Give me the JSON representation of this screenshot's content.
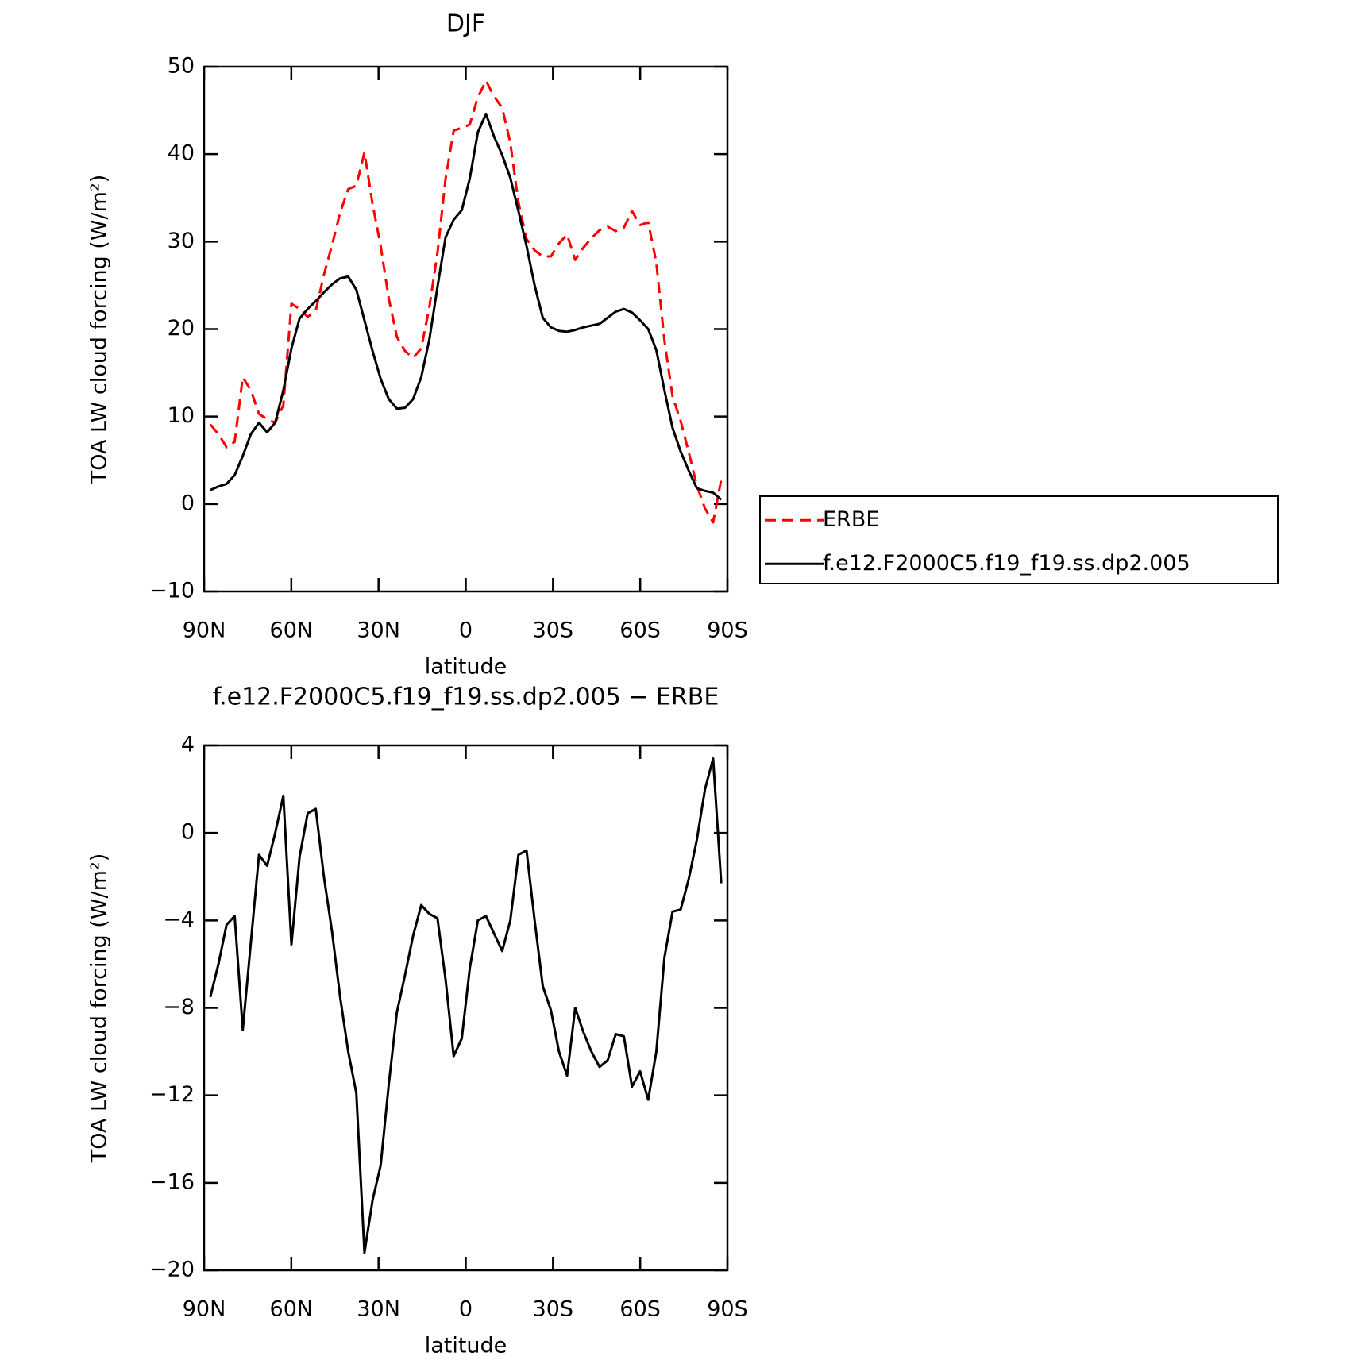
{
  "chart_data": [
    {
      "type": "line",
      "title": "DJF",
      "xlabel": "latitude",
      "ylabel": "TOA LW cloud forcing (W/m²)",
      "x": [
        87.86,
        85.07,
        82.28,
        79.49,
        76.7,
        73.91,
        71.12,
        68.33,
        65.54,
        62.75,
        59.96,
        57.17,
        54.38,
        51.59,
        48.8,
        46.01,
        43.22,
        40.43,
        37.64,
        34.85,
        32.06,
        29.27,
        26.48,
        23.69,
        20.9,
        18.11,
        15.32,
        12.53,
        9.74,
        6.95,
        4.16,
        1.37,
        -1.37,
        -4.16,
        -6.95,
        -9.74,
        -12.53,
        -15.32,
        -18.11,
        -20.9,
        -23.69,
        -26.48,
        -29.27,
        -32.06,
        -34.85,
        -37.64,
        -40.43,
        -43.22,
        -46.01,
        -48.8,
        -51.59,
        -54.38,
        -57.17,
        -59.96,
        -62.75,
        -65.54,
        -68.33,
        -71.12,
        -73.91,
        -76.7,
        -79.49,
        -82.28,
        -85.07,
        -87.86
      ],
      "series": [
        {
          "name": "ERBE",
          "color": "#ff0000",
          "style": "dashed",
          "values": [
            9.1,
            8,
            6.5,
            7.1,
            14.5,
            13,
            10.3,
            9.7,
            9.3,
            11.3,
            22.9,
            22.3,
            21.4,
            22.1,
            26.2,
            29.6,
            33.3,
            36,
            36.4,
            40.2,
            34.3,
            29.5,
            23.5,
            19.1,
            17.5,
            16.7,
            17.8,
            22.5,
            28.7,
            37.2,
            42.7,
            43,
            43.4,
            46.5,
            48.4,
            46.6,
            45.3,
            41.3,
            34.5,
            30.3,
            29,
            28.3,
            28.3,
            29.8,
            30.8,
            27.9,
            29.3,
            30.4,
            31.3,
            31.7,
            31.2,
            31.6,
            33.5,
            31.9,
            32.2,
            27.6,
            18.7,
            12.3,
            9.5,
            5.9,
            2.1,
            -0.5,
            -2.1,
            2.8
          ]
        },
        {
          "name": "f.e12.F2000C5.f19_f19.ss.dp2.005",
          "color": "#000000",
          "style": "solid",
          "values": [
            1.6,
            2,
            2.3,
            3.3,
            5.5,
            8,
            9.3,
            8.2,
            9.3,
            13,
            17.8,
            21.2,
            22.3,
            23.2,
            24.2,
            25.1,
            25.8,
            26,
            24.5,
            21,
            17.5,
            14.3,
            12,
            10.9,
            11,
            12,
            14.5,
            18.8,
            24.8,
            30.5,
            32.5,
            33.6,
            37.2,
            42.5,
            44.6,
            42,
            39.9,
            37.3,
            33.5,
            29.5,
            25,
            21.3,
            20.2,
            19.8,
            19.7,
            19.9,
            20.2,
            20.4,
            20.6,
            21.3,
            22,
            22.3,
            21.9,
            21,
            20,
            17.6,
            13,
            8.7,
            6,
            3.8,
            1.8,
            1.5,
            1.3,
            0.5
          ]
        }
      ],
      "xlim": [
        90,
        -90
      ],
      "xticks": [
        {
          "value": 90,
          "label": "90N"
        },
        {
          "value": 60,
          "label": "60N"
        },
        {
          "value": 30,
          "label": "30N"
        },
        0,
        {
          "value": -30,
          "label": "30S"
        },
        {
          "value": -60,
          "label": "60S"
        },
        {
          "value": -90,
          "label": "90S"
        }
      ],
      "ylim": [
        -10,
        50
      ],
      "yticks": [
        {
          "value": -10,
          "label": "−10"
        },
        0,
        10,
        20,
        30,
        40,
        50
      ],
      "legend": "right"
    },
    {
      "type": "line",
      "title": "f.e12.F2000C5.f19_f19.ss.dp2.005 − ERBE",
      "xlabel": "latitude",
      "ylabel": "TOA LW cloud forcing (W/m²)",
      "x": [
        87.86,
        85.07,
        82.28,
        79.49,
        76.7,
        73.91,
        71.12,
        68.33,
        65.54,
        62.75,
        59.96,
        57.17,
        54.38,
        51.59,
        48.8,
        46.01,
        43.22,
        40.43,
        37.64,
        34.85,
        32.06,
        29.27,
        26.48,
        23.69,
        20.9,
        18.11,
        15.32,
        12.53,
        9.74,
        6.95,
        4.16,
        1.37,
        -1.37,
        -4.16,
        -6.95,
        -9.74,
        -12.53,
        -15.32,
        -18.11,
        -20.9,
        -23.69,
        -26.48,
        -29.27,
        -32.06,
        -34.85,
        -37.64,
        -40.43,
        -43.22,
        -46.01,
        -48.8,
        -51.59,
        -54.38,
        -57.17,
        -59.96,
        -62.75,
        -65.54,
        -68.33,
        -71.12,
        -73.91,
        -76.7,
        -79.49,
        -82.28,
        -85.07,
        -87.86
      ],
      "series": [
        {
          "color": "#000000",
          "style": "solid",
          "values": [
            -7.5,
            -6,
            -4.2,
            -3.8,
            -9,
            -5,
            -1,
            -1.5,
            0,
            1.7,
            -5.1,
            -1.1,
            0.9,
            1.1,
            -2,
            -4.5,
            -7.5,
            -10,
            -11.9,
            -19.2,
            -16.8,
            -15.2,
            -11.5,
            -8.2,
            -6.5,
            -4.7,
            -3.3,
            -3.7,
            -3.9,
            -6.7,
            -10.2,
            -9.4,
            -6.2,
            -4,
            -3.8,
            -4.6,
            -5.4,
            -4,
            -1,
            -0.8,
            -4,
            -7,
            -8.1,
            -10,
            -11.1,
            -8,
            -9.1,
            -10,
            -10.7,
            -10.4,
            -9.2,
            -9.3,
            -11.6,
            -10.9,
            -12.2,
            -10,
            -5.7,
            -3.6,
            -3.5,
            -2.1,
            -0.3,
            2,
            3.4,
            -2.3
          ]
        }
      ],
      "xlim": [
        90,
        -90
      ],
      "xticks": [
        {
          "value": 90,
          "label": "90N"
        },
        {
          "value": 60,
          "label": "60N"
        },
        {
          "value": 30,
          "label": "30N"
        },
        0,
        {
          "value": -30,
          "label": "30S"
        },
        {
          "value": -60,
          "label": "60S"
        },
        {
          "value": -90,
          "label": "90S"
        }
      ],
      "ylim": [
        -20,
        4
      ],
      "yticks": [
        {
          "value": -20,
          "label": "−20"
        },
        {
          "value": -16,
          "label": "−16"
        },
        {
          "value": -12,
          "label": "−12"
        },
        {
          "value": -8,
          "label": "−8"
        },
        {
          "value": -4,
          "label": "−4"
        },
        0,
        4
      ]
    }
  ]
}
